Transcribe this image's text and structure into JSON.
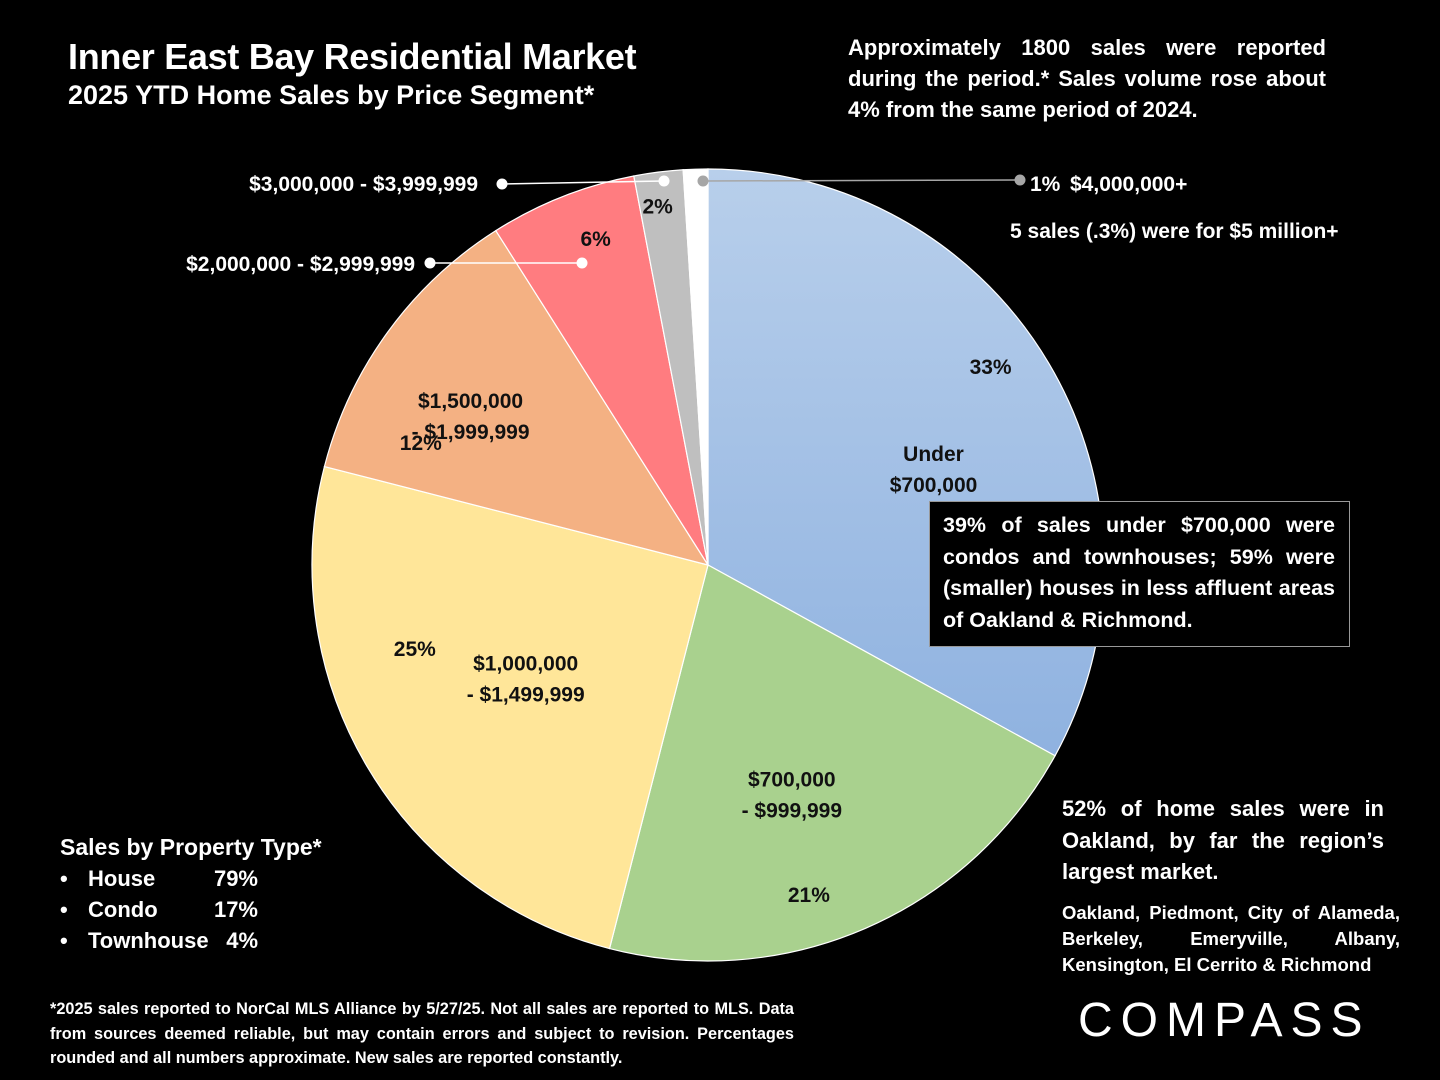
{
  "title": "Inner East Bay Residential Market",
  "subtitle": "2025 YTD Home Sales by Price Segment*",
  "note_top": "Approximately 1800 sales were reported during the period.* Sales volume rose about 4% from the same period of 2024.",
  "note_fivemil": "5 sales (.3%) were for $5 million+",
  "callout_under700": "39% of sales under $700,000 were condos and townhouses; 59% were (smaller) houses in less affluent areas of Oakland & Richmond.",
  "note_oakland": "52% of home sales were in Oakland, by far the region’s largest market.",
  "note_cities": "Oakland, Piedmont, City of Alameda, Berkeley, Emeryville, Albany, Kensington, El Cerrito & Richmond",
  "property_type": {
    "title": "Sales by Property Type*",
    "bullet": "•",
    "rows": [
      {
        "name": "House",
        "value": "79%"
      },
      {
        "name": "Condo",
        "value": "17%"
      },
      {
        "name": "Townhouse",
        "value": "4%"
      }
    ]
  },
  "footnote": "*2025 sales reported to NorCal MLS Alliance by 5/27/25. Not all sales are reported to MLS. Data from sources deemed reliable, but may contain errors and subject to revision. Percentages rounded and all numbers approximate. New sales are reported constantly.",
  "logo": "COMPASS",
  "chart_data": {
    "type": "pie",
    "title": "Inner East Bay Residential Market",
    "subtitle": "2025 YTD Home Sales by Price Segment*",
    "start": "12 o'clock, clockwise",
    "slices": [
      {
        "label": "Under $700,000",
        "label_lines": [
          "Under",
          "$700,000"
        ],
        "value": 33,
        "pct_label": "33%",
        "color": "#9ebfe6",
        "color_light": "#b4cdea"
      },
      {
        "label": "$700,000 - $999,999",
        "label_lines": [
          "$700,000",
          "- $999,999"
        ],
        "value": 21,
        "pct_label": "21%",
        "color": "#a9d18e"
      },
      {
        "label": "$1,000,000 - $1,499,999",
        "label_lines": [
          "$1,000,000",
          "- $1,499,999"
        ],
        "value": 25,
        "pct_label": "25%",
        "color": "#ffe699"
      },
      {
        "label": "$1,500,000 - $1,999,999",
        "label_lines": [
          "$1,500,000",
          "- $1,999,999"
        ],
        "value": 12,
        "pct_label": "12%",
        "color": "#f4b183"
      },
      {
        "label": "$2,000,000 - $2,999,999",
        "label_lines": [
          "$2,000,000 - $2,999,999"
        ],
        "value": 6,
        "pct_label": "6%",
        "color": "#ff7c80"
      },
      {
        "label": "$3,000,000 - $3,999,999",
        "label_lines": [
          "$3,000,000 - $3,999,999"
        ],
        "value": 2,
        "pct_label": "2%",
        "color": "#bfbfbf"
      },
      {
        "label": "$4,000,000+",
        "label_lines": [
          "$4,000,000+"
        ],
        "value": 1,
        "pct_label": "1%",
        "color": "#ffffff"
      }
    ]
  }
}
